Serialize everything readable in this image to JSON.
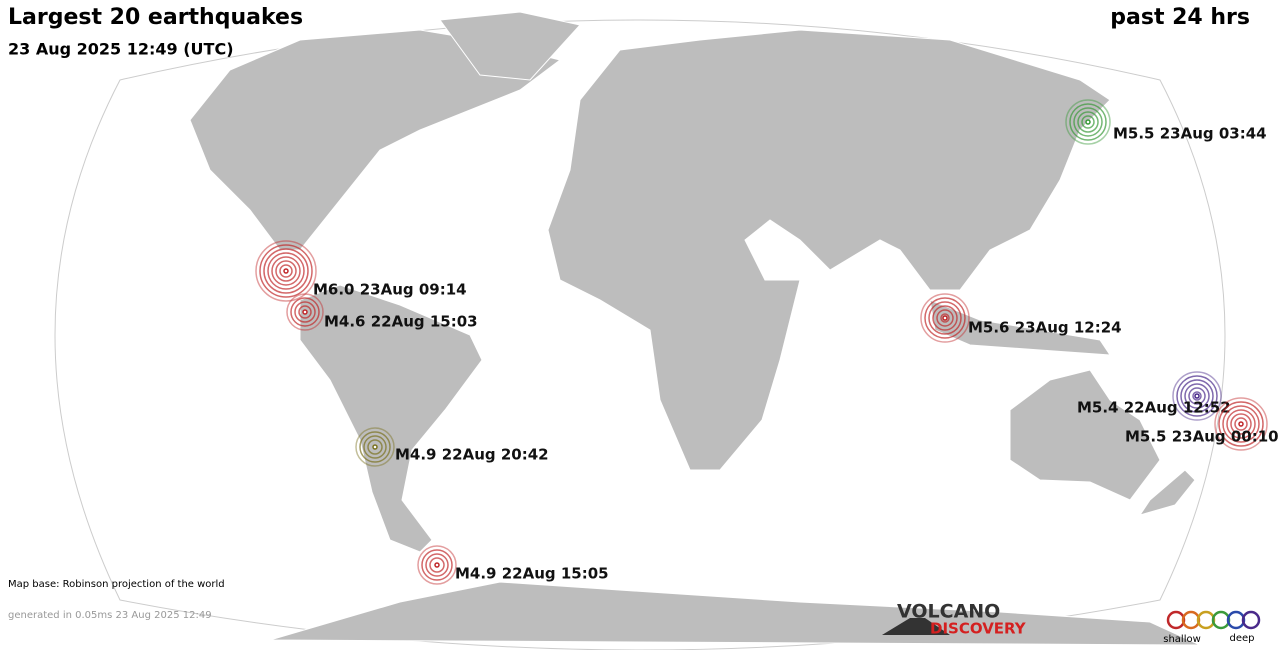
{
  "header": {
    "title": "Largest 20 earthquakes",
    "period": "past 24 hrs",
    "timestamp": "23 Aug 2025 12:49 (UTC)"
  },
  "quakes": [
    {
      "label": "M5.5 23Aug 03:44",
      "color": "#3a9a3a"
    },
    {
      "label": "M6.0 23Aug 09:14",
      "color": "#c0282a"
    },
    {
      "label": "M4.6 22Aug 15:03",
      "color": "#c0282a"
    },
    {
      "label": "M5.6 23Aug 12:24",
      "color": "#c0282a"
    },
    {
      "label": "M5.4 22Aug 12:52",
      "color": "#4a2a8a"
    },
    {
      "label": "M5.5 23Aug 00:10",
      "color": "#c0282a"
    },
    {
      "label": "M4.9 22Aug 20:42",
      "color": "#7a7220"
    },
    {
      "label": "M4.9 22Aug 15:05",
      "color": "#c0282a"
    }
  ],
  "footer": {
    "map_base": "Map base: Robinson projection of the world",
    "generated": "generated in 0.05ms 23 Aug 2025 12:49"
  },
  "logo": {
    "line1": "VOLCANO",
    "line2": "DISCOVERY"
  },
  "depth_legend": {
    "shallow": "shallow",
    "deep": "deep"
  }
}
